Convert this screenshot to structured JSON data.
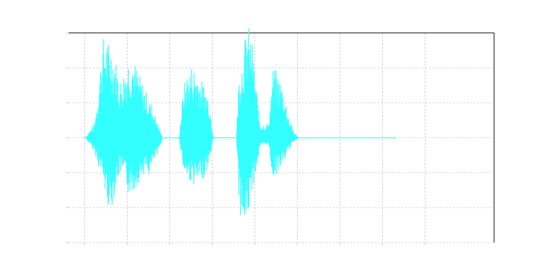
{
  "chart_data": {
    "type": "line",
    "title": "",
    "xlabel": "",
    "ylabel": "",
    "xlim": [
      0,
      1
    ],
    "ylim": [
      -1.5,
      1.5
    ],
    "x_ticks": [
      0.0375,
      0.1375,
      0.2375,
      0.3375,
      0.4375,
      0.5375,
      0.6375,
      0.7375,
      0.8375
    ],
    "y_ticks": [
      -1.5,
      -1.0,
      -0.5,
      0.0,
      0.5,
      1.0,
      1.5
    ],
    "grid": true,
    "tick_labels_visible": false,
    "color": "#33ffff",
    "x_end": 0.77,
    "segments": [
      {
        "start": 0.04,
        "end": 0.22,
        "peaks": [
          [
            0.04,
            0.0,
            0.0
          ],
          [
            0.06,
            0.2,
            -0.2
          ],
          [
            0.07,
            0.7,
            -0.4
          ],
          [
            0.08,
            1.45,
            -0.6
          ],
          [
            0.09,
            1.4,
            -0.95
          ],
          [
            0.1,
            1.35,
            -1.05
          ],
          [
            0.11,
            1.15,
            -0.75
          ],
          [
            0.12,
            0.8,
            -0.5
          ],
          [
            0.13,
            0.95,
            -0.6
          ],
          [
            0.14,
            1.15,
            -0.8
          ],
          [
            0.15,
            1.2,
            -0.8
          ],
          [
            0.16,
            1.0,
            -0.7
          ],
          [
            0.17,
            0.85,
            -0.55
          ],
          [
            0.18,
            0.7,
            -0.5
          ],
          [
            0.19,
            0.55,
            -0.55
          ],
          [
            0.2,
            0.4,
            -0.35
          ],
          [
            0.21,
            0.2,
            -0.25
          ],
          [
            0.22,
            0.0,
            0.0
          ]
        ]
      },
      {
        "start": 0.26,
        "end": 0.34,
        "peaks": [
          [
            0.26,
            0.0,
            0.0
          ],
          [
            0.27,
            0.75,
            -0.5
          ],
          [
            0.28,
            0.95,
            -0.6
          ],
          [
            0.29,
            1.05,
            -0.65
          ],
          [
            0.3,
            1.0,
            -0.7
          ],
          [
            0.31,
            0.85,
            -0.65
          ],
          [
            0.32,
            0.75,
            -0.55
          ],
          [
            0.33,
            0.6,
            -0.4
          ],
          [
            0.34,
            0.0,
            0.0
          ]
        ]
      },
      {
        "start": 0.34,
        "end": 0.395,
        "peaks": [
          [
            0.34,
            0.0,
            0.0
          ],
          [
            0.395,
            0.0,
            0.0
          ]
        ]
      },
      {
        "start": 0.395,
        "end": 0.54,
        "peaks": [
          [
            0.395,
            0.1,
            -0.1
          ],
          [
            0.4,
            0.9,
            -0.9
          ],
          [
            0.41,
            1.25,
            -1.4
          ],
          [
            0.42,
            1.65,
            -1.2
          ],
          [
            0.43,
            1.45,
            -0.8
          ],
          [
            0.44,
            0.8,
            -0.5
          ],
          [
            0.45,
            0.2,
            -0.15
          ],
          [
            0.46,
            0.2,
            -0.1
          ],
          [
            0.47,
            0.2,
            -0.1
          ],
          [
            0.48,
            1.0,
            -0.6
          ],
          [
            0.49,
            0.95,
            -0.5
          ],
          [
            0.5,
            0.8,
            -0.4
          ],
          [
            0.51,
            0.55,
            -0.3
          ],
          [
            0.52,
            0.25,
            -0.15
          ],
          [
            0.53,
            0.08,
            -0.05
          ],
          [
            0.54,
            0.0,
            0.0
          ]
        ]
      }
    ]
  }
}
